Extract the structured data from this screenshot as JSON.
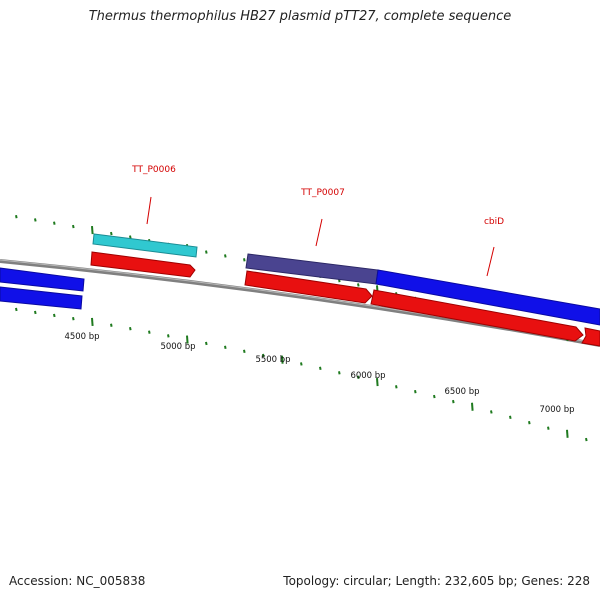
{
  "title": "Thermus thermophilus HB27 plasmid pTT27, complete sequence",
  "footer": {
    "accession": "Accession: NC_005838",
    "summary": "Topology: circular; Length: 232,605 bp; Genes: 228"
  },
  "colors": {
    "backbone": "#8c8c8c",
    "tick": "#1f7a1f",
    "label": "#d40000",
    "blue_gene": "#1010e8",
    "cyan_gene": "#30c8d0",
    "purple_gene": "#4a4490",
    "red_gene": "#e81010"
  },
  "gene_labels": [
    {
      "name": "gene-label-tt-p0006",
      "text": "TT_P0006"
    },
    {
      "name": "gene-label-tt-p0007",
      "text": "TT_P0007"
    },
    {
      "name": "gene-label-cbid",
      "text": "cbiD"
    }
  ],
  "tick_labels": [
    {
      "name": "tick-label-4500",
      "text": "4500 bp"
    },
    {
      "name": "tick-label-5000",
      "text": "5000 bp"
    },
    {
      "name": "tick-label-5500",
      "text": "5500 bp"
    },
    {
      "name": "tick-label-6000",
      "text": "6000 bp"
    },
    {
      "name": "tick-label-6500",
      "text": "6500 bp"
    },
    {
      "name": "tick-label-7000",
      "text": "7000 bp"
    }
  ]
}
